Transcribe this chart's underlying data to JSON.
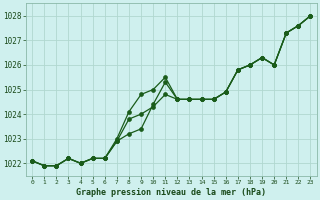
{
  "xlabel": "Graphe pression niveau de la mer (hPa)",
  "hours": [
    0,
    1,
    2,
    3,
    4,
    5,
    6,
    7,
    8,
    9,
    10,
    11,
    12,
    13,
    14,
    15,
    16,
    17,
    18,
    19,
    20,
    21,
    22,
    23
  ],
  "line1": [
    1022.1,
    1021.9,
    1021.9,
    1022.2,
    1022.0,
    1022.2,
    1022.2,
    1022.9,
    1023.2,
    1023.4,
    1024.4,
    1025.3,
    1024.6,
    1024.6,
    1024.6,
    1024.6,
    1024.9,
    1025.8,
    1026.0,
    1026.3,
    1026.0,
    1027.3,
    1027.6,
    1028.0
  ],
  "line2": [
    1022.1,
    1021.9,
    1021.9,
    1022.2,
    1022.0,
    1022.2,
    1022.2,
    1023.0,
    1024.1,
    1024.8,
    1025.0,
    1025.5,
    1024.6,
    1024.6,
    1024.6,
    1024.6,
    1024.9,
    1025.8,
    1026.0,
    1026.3,
    1026.0,
    1027.3,
    1027.6,
    1028.0
  ],
  "line3": [
    1022.1,
    1021.9,
    1021.9,
    1022.2,
    1022.0,
    1022.2,
    1022.2,
    1022.9,
    1023.8,
    1024.0,
    1024.3,
    1024.8,
    1024.6,
    1024.6,
    1024.6,
    1024.6,
    1024.9,
    1025.8,
    1026.0,
    1026.3,
    1026.0,
    1027.3,
    1027.6,
    1028.0
  ],
  "line_color": "#1a5c1a",
  "bg_color": "#cff0ee",
  "grid_color": "#b0d8d0",
  "ylim": [
    1021.5,
    1028.5
  ],
  "yticks": [
    1022,
    1023,
    1024,
    1025,
    1026,
    1027,
    1028
  ],
  "xlim": [
    -0.5,
    23.5
  ]
}
